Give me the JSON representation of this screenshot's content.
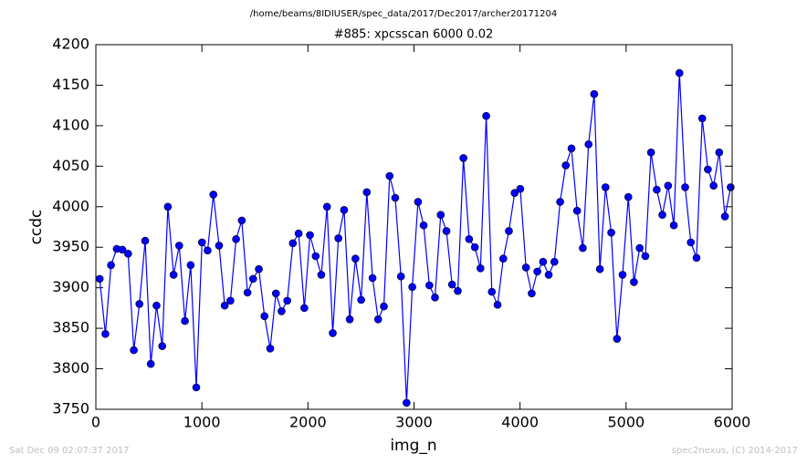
{
  "chart_data": {
    "type": "line",
    "suptitle": "/home/beams/8IDIUSER/spec_data/2017/Dec2017/archer20171204",
    "title": "#885: xpcsscan 6000 0.02",
    "xlabel": "img_n",
    "ylabel": "ccdc",
    "footer_left": "Sat Dec 09 02:07:37 2017",
    "footer_right": "spec2nexus, (C) 2014-2017",
    "xlim": [
      0,
      6000
    ],
    "ylim": [
      3750,
      4200
    ],
    "xticks": [
      0,
      1000,
      2000,
      3000,
      4000,
      5000,
      6000
    ],
    "yticks": [
      3750,
      3800,
      3850,
      3900,
      3950,
      4000,
      4050,
      4100,
      4150,
      4200
    ],
    "grid": false,
    "marker": "o",
    "x": [
      36,
      90,
      143,
      197,
      250,
      304,
      358,
      411,
      465,
      518,
      572,
      626,
      679,
      733,
      786,
      840,
      894,
      947,
      1001,
      1054,
      1108,
      1162,
      1215,
      1269,
      1322,
      1376,
      1430,
      1483,
      1537,
      1590,
      1644,
      1698,
      1751,
      1805,
      1858,
      1912,
      1966,
      2019,
      2073,
      2126,
      2180,
      2234,
      2287,
      2341,
      2394,
      2448,
      2502,
      2555,
      2609,
      2662,
      2716,
      2770,
      2823,
      2877,
      2930,
      2984,
      3038,
      3091,
      3145,
      3198,
      3252,
      3306,
      3359,
      3413,
      3466,
      3520,
      3574,
      3627,
      3681,
      3734,
      3788,
      3842,
      3895,
      3949,
      4002,
      4056,
      4110,
      4163,
      4217,
      4270,
      4324,
      4378,
      4431,
      4485,
      4538,
      4592,
      4646,
      4699,
      4753,
      4806,
      4860,
      4914,
      4967,
      5021,
      5074,
      5128,
      5182,
      5235,
      5289,
      5342,
      5396,
      5450,
      5503,
      5557,
      5610,
      5664,
      5718,
      5771,
      5825,
      5878,
      5932,
      5986
    ],
    "series": [
      {
        "color": "#0000ff",
        "values": [
          3911,
          3843,
          3928,
          3948,
          3947,
          3942,
          3823,
          3880,
          3958,
          3806,
          3878,
          3828,
          4000,
          3916,
          3952,
          3859,
          3928,
          3777,
          3956,
          3946,
          4015,
          3952,
          3878,
          3884,
          3960,
          3983,
          3894,
          3911,
          3923,
          3865,
          3825,
          3893,
          3871,
          3884,
          3955,
          3967,
          3875,
          3965,
          3939,
          3916,
          4000,
          3844,
          3961,
          3996,
          3861,
          3936,
          3885,
          4018,
          3912,
          3861,
          3877,
          4038,
          4011,
          3914,
          3758,
          3901,
          4006,
          3977,
          3903,
          3888,
          3990,
          3970,
          3904,
          3896,
          4060,
          3960,
          3950,
          3924,
          4112,
          3895,
          3879,
          3936,
          3970,
          4017,
          4022,
          3925,
          3893,
          3920,
          3932,
          3916,
          3932,
          4006,
          4051,
          4072,
          3995,
          3949,
          4077,
          4139,
          3923,
          4024,
          3968,
          3837,
          3916,
          4012,
          3907,
          3949,
          3939,
          4067,
          4021,
          3990,
          4026,
          3977,
          4165,
          4024,
          3956,
          3937,
          4109,
          4046,
          4026,
          4067,
          3988,
          4024
        ]
      }
    ]
  }
}
